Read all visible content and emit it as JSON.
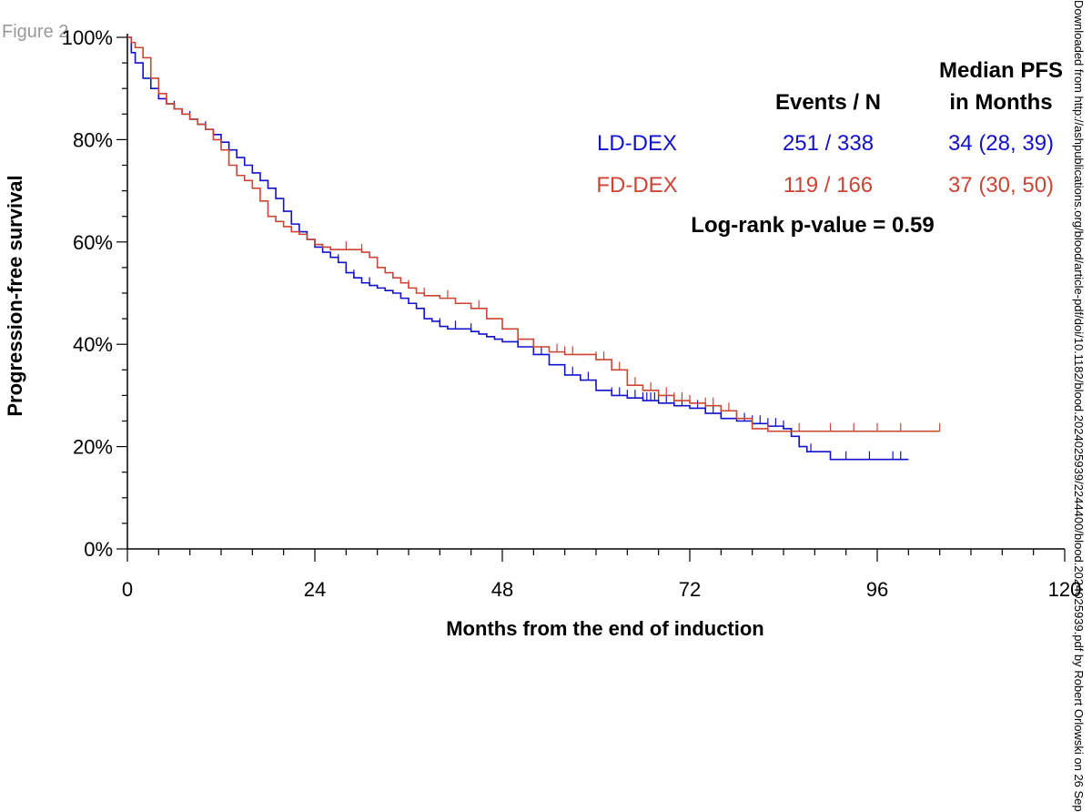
{
  "figure_label": "Figure 2",
  "side_text": "Downloaded from http://ashpublications.org/blood/article-pdf/doi/10.1182/blood.2024025939/2244400/blood.2024025939.pdf by Robert Orlowski on 26 Sep",
  "chart_data": {
    "type": "line",
    "title": "",
    "xlabel": "Months from the end of induction",
    "ylabel": "Progression-free survival",
    "xlim": [
      0,
      120
    ],
    "ylim": [
      0,
      100
    ],
    "x_ticks": [
      0,
      24,
      48,
      72,
      96,
      120
    ],
    "x_tick_labels": [
      "0",
      "24",
      "48",
      "72",
      "96",
      "120"
    ],
    "y_ticks": [
      0,
      20,
      40,
      60,
      80,
      100
    ],
    "y_tick_labels": [
      "0%",
      "20%",
      "40%",
      "60%",
      "80%",
      "100%"
    ],
    "headers": {
      "events": "Events / N",
      "median_line1": "Median PFS",
      "median_line2": "in Months"
    },
    "pvalue_text": "Log-rank p-value = 0.59",
    "series": [
      {
        "name": "LD-DEX",
        "color": "#1111cc",
        "events_n": "251 / 338",
        "median": "34 (28, 39)",
        "x": [
          0,
          0.5,
          1,
          2,
          3,
          4,
          5,
          6,
          7,
          8,
          9,
          10,
          11,
          12,
          13,
          14,
          15,
          16,
          17,
          18,
          19,
          20,
          21,
          22,
          23,
          24,
          25,
          26,
          27,
          28,
          29,
          30,
          31,
          32,
          33,
          34,
          35,
          36,
          37,
          38,
          39,
          40,
          41,
          42,
          43,
          44,
          45,
          46,
          47,
          48,
          50,
          52,
          54,
          56,
          58,
          60,
          62,
          64,
          66,
          68,
          70,
          72,
          74,
          76,
          78,
          80,
          82,
          84,
          85,
          86,
          87,
          88,
          90,
          92,
          94,
          96,
          98,
          100
        ],
        "y": [
          100,
          97,
          95,
          92,
          90,
          88,
          87,
          86,
          85,
          84,
          83,
          82,
          81,
          79.5,
          78,
          76.5,
          75,
          73.5,
          72,
          70.5,
          68.5,
          66,
          63.5,
          62,
          60.5,
          59,
          58,
          57,
          56,
          54,
          53,
          52,
          51.5,
          51,
          50.5,
          50,
          49,
          48,
          47,
          45,
          44.5,
          43.5,
          43,
          43,
          43,
          42.5,
          42,
          41.5,
          41,
          40.5,
          39.5,
          38,
          36,
          34,
          33,
          31,
          30,
          29.5,
          29,
          28.5,
          28,
          27.5,
          26.5,
          25.5,
          25,
          24.5,
          24,
          23.5,
          22,
          20,
          19,
          19,
          17.5,
          17.5,
          17.5,
          17.5,
          17.5,
          17.5
        ],
        "censor_x": [
          4,
          6,
          8,
          10,
          27,
          29,
          31,
          38,
          40,
          42,
          44,
          50,
          53,
          57,
          59,
          62,
          63,
          64,
          65,
          66,
          66.5,
          67,
          67.5,
          68,
          69,
          70,
          71,
          73,
          74,
          75,
          76,
          78,
          79,
          80,
          81,
          82,
          83,
          84,
          85,
          86,
          87.5,
          92,
          95,
          98,
          99
        ]
      },
      {
        "name": "FD-DEX",
        "color": "#cc4433",
        "events_n": "119 / 166",
        "median": "37 (30, 50)",
        "x": [
          0,
          0.5,
          1,
          2,
          3,
          4,
          5,
          6,
          7,
          8,
          9,
          10,
          11,
          12,
          13,
          14,
          15,
          16,
          17,
          18,
          19,
          20,
          21,
          22,
          23,
          24,
          25,
          26,
          28,
          30,
          31,
          32,
          33,
          34,
          35,
          36,
          37,
          38,
          40,
          42,
          44,
          46,
          48,
          50,
          52,
          54,
          56,
          58,
          60,
          62,
          64,
          66,
          68,
          70,
          72,
          74,
          76,
          78,
          80,
          82,
          84,
          86,
          88,
          90,
          92,
          94,
          96,
          98,
          100,
          104
        ],
        "y": [
          100,
          99,
          98,
          96,
          92,
          89,
          87,
          86,
          85,
          84,
          83,
          82,
          80,
          78,
          75,
          73,
          72,
          70.5,
          68,
          65,
          64,
          63,
          62,
          61.5,
          60.5,
          59.5,
          59,
          58.5,
          58.5,
          58,
          57,
          55,
          54,
          53,
          52,
          51,
          50,
          49.5,
          49,
          48,
          47,
          45,
          43,
          41,
          39.5,
          38.5,
          38,
          38,
          37,
          35,
          32,
          31,
          30,
          29,
          28.5,
          28,
          27,
          25.5,
          23.5,
          23,
          23,
          23,
          23,
          23,
          23,
          23,
          23,
          23,
          23,
          23
        ],
        "censor_x": [
          28,
          30,
          36,
          38,
          41,
          45,
          55,
          56,
          57,
          60,
          61,
          63,
          65,
          67,
          69,
          70,
          71,
          72,
          74,
          75,
          77,
          78,
          80,
          82,
          86,
          90,
          93,
          96,
          99,
          104
        ]
      }
    ]
  }
}
